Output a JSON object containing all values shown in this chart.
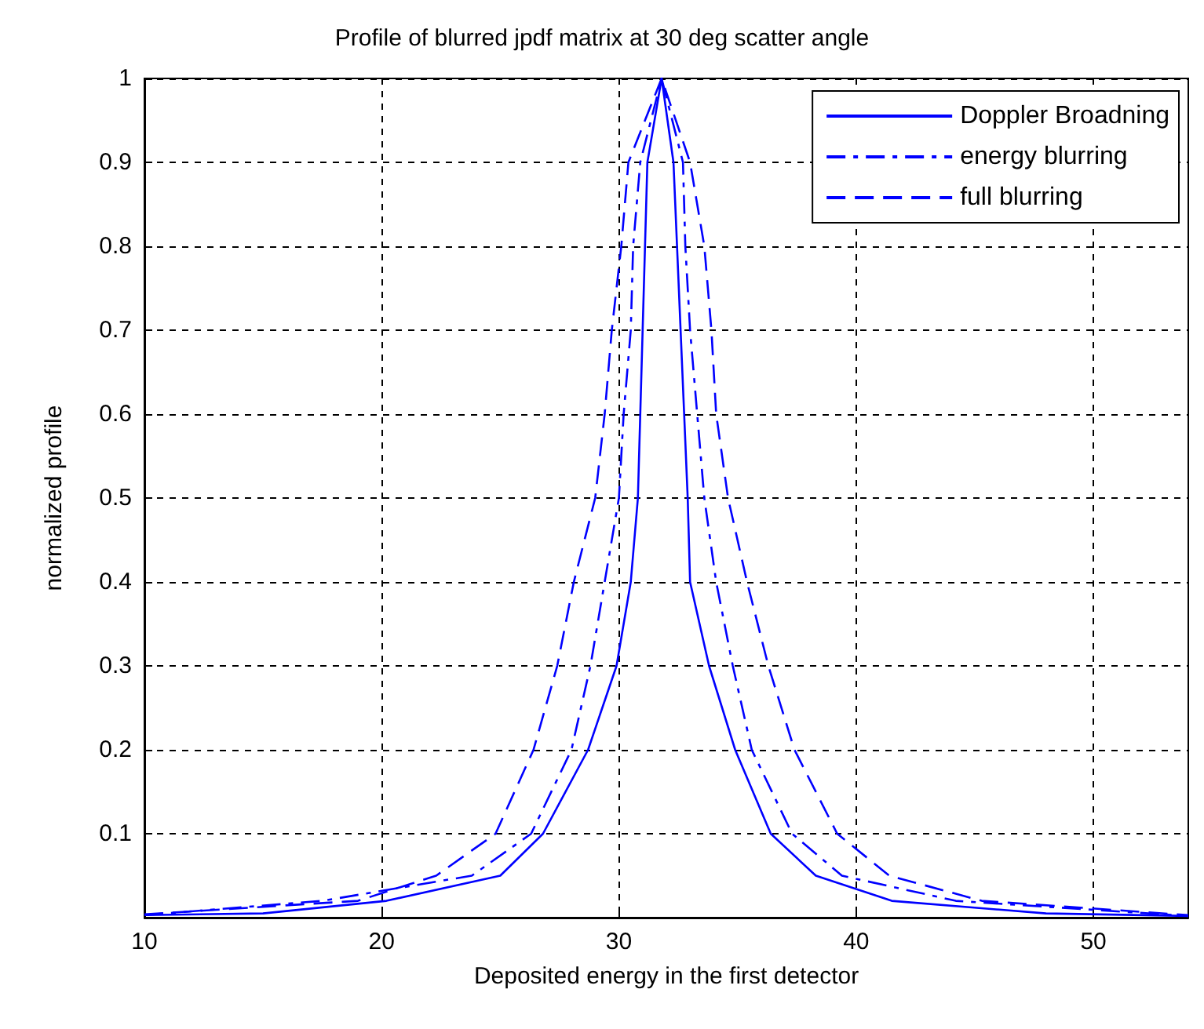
{
  "chart_data": {
    "type": "line",
    "title": "Profile of blurred jpdf matrix at 30 deg scatter angle",
    "xlabel": "Deposited energy in the first detector",
    "ylabel": "normalized profile",
    "xlim": [
      10,
      54
    ],
    "xticks": [
      10,
      20,
      30,
      40,
      50
    ],
    "ylim": [
      0,
      1
    ],
    "yticks": [
      {
        "value": 0,
        "label": null
      },
      0.1,
      0.2,
      0.3,
      0.4,
      0.5,
      0.6,
      0.7,
      0.8,
      0.9,
      1
    ],
    "grid": true,
    "legend": "top right",
    "marker": "none",
    "series": [
      {
        "name": "Doppler Broadning",
        "color": "#0000ff",
        "line_style": "solid",
        "x": [
          10,
          15,
          20.2,
          25,
          26.8,
          28.7,
          29.9,
          30.5,
          30.8,
          31.2,
          31.8,
          32.3,
          32.9,
          33,
          33.8,
          34.9,
          36.4,
          38.3,
          41.5,
          48,
          54
        ],
        "values": [
          0.003,
          0.005,
          0.02,
          0.05,
          0.1,
          0.2,
          0.3,
          0.4,
          0.5,
          0.9,
          1,
          0.9,
          0.5,
          0.4,
          0.3,
          0.2,
          0.1,
          0.05,
          0.02,
          0.005,
          0.002
        ]
      },
      {
        "name": "energy blurring",
        "color": "#0000ff",
        "line_style": "dashdot",
        "x": [
          10,
          17.5,
          23.8,
          26.3,
          28,
          28.8,
          29.4,
          30,
          30.2,
          30.5,
          30.6,
          30.9,
          31.8,
          32.7,
          32.8,
          33,
          33.3,
          33.6,
          34.1,
          34.8,
          35.6,
          37.3,
          39.4,
          44.2,
          54
        ],
        "values": [
          0.003,
          0.02,
          0.05,
          0.1,
          0.2,
          0.3,
          0.4,
          0.5,
          0.6,
          0.7,
          0.8,
          0.9,
          1,
          0.9,
          0.8,
          0.7,
          0.6,
          0.5,
          0.4,
          0.3,
          0.2,
          0.1,
          0.05,
          0.02,
          0.002
        ]
      },
      {
        "name": "full blurring",
        "color": "#0000ff",
        "line_style": "dashed",
        "x": [
          10,
          19,
          22.3,
          24.8,
          26.4,
          27.4,
          28.1,
          29,
          29.4,
          29.7,
          30.1,
          30.4,
          31.8,
          33,
          33.6,
          33.9,
          34.1,
          34.6,
          35.4,
          36.3,
          37.4,
          39.2,
          41.4,
          45.3,
          54
        ],
        "values": [
          0.004,
          0.02,
          0.05,
          0.1,
          0.2,
          0.3,
          0.4,
          0.5,
          0.6,
          0.7,
          0.8,
          0.9,
          1,
          0.9,
          0.8,
          0.7,
          0.6,
          0.5,
          0.4,
          0.3,
          0.2,
          0.1,
          0.05,
          0.02,
          0.003
        ]
      }
    ]
  }
}
